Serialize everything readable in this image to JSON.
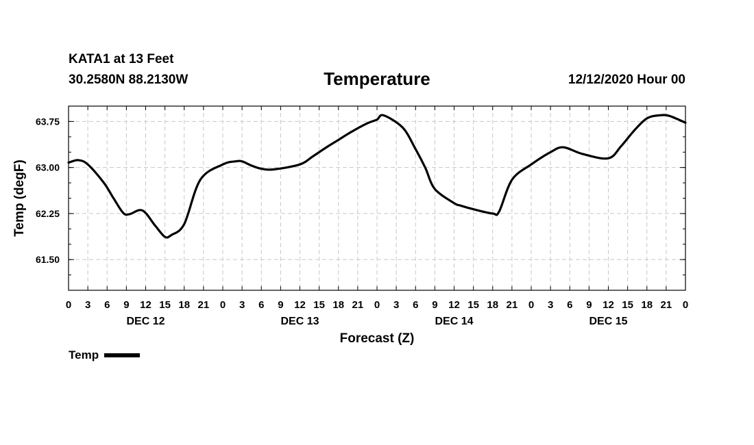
{
  "header": {
    "station": "KATA1 at 13 Feet",
    "coords": "30.2580N 88.2130W",
    "title": "Temperature",
    "datetime": "12/12/2020 Hour 00"
  },
  "chart_data": {
    "type": "line",
    "title": "Temperature",
    "xlabel": "Forecast (Z)",
    "ylabel": "Temp (degF)",
    "x_unit": "forecast hour",
    "xlim": [
      0,
      96
    ],
    "ylim": [
      61.0,
      64.0
    ],
    "y_ticks": [
      61.5,
      62.25,
      63.0,
      63.75
    ],
    "y_tick_labels": [
      "61.50",
      "62.25",
      "63.00",
      "63.75"
    ],
    "grid": true,
    "x_tick_hours": [
      0,
      3,
      6,
      9,
      12,
      15,
      18,
      21,
      24,
      27,
      30,
      33,
      36,
      39,
      42,
      45,
      48,
      51,
      54,
      57,
      60,
      63,
      66,
      69,
      72,
      75,
      78,
      81,
      84,
      87,
      90,
      93,
      96
    ],
    "x_tick_labels": [
      "0",
      "3",
      "6",
      "9",
      "12",
      "15",
      "18",
      "21",
      "0",
      "3",
      "6",
      "9",
      "12",
      "15",
      "18",
      "21",
      "0",
      "3",
      "6",
      "9",
      "12",
      "15",
      "18",
      "21",
      "0",
      "3",
      "6",
      "9",
      "12",
      "15",
      "18",
      "21",
      "0"
    ],
    "day_labels": [
      {
        "label": "DEC 12",
        "hour": 12
      },
      {
        "label": "DEC 13",
        "hour": 36
      },
      {
        "label": "DEC 14",
        "hour": 60
      },
      {
        "label": "DEC 15",
        "hour": 84
      }
    ],
    "legend": {
      "entries": [
        "Temp"
      ],
      "position": "bottom-left"
    },
    "series": [
      {
        "name": "Temp",
        "color": "#000000",
        "x": [
          0,
          1.5,
          3,
          5.5,
          7,
          8.5,
          9.5,
          11.5,
          13.5,
          15,
          16,
          18,
          20.5,
          24,
          26,
          27,
          28.5,
          30,
          32,
          36,
          38,
          40,
          42,
          44,
          46.5,
          48,
          49,
          52,
          54,
          55.5,
          57,
          60,
          61,
          63,
          66,
          67,
          69,
          72,
          75,
          77,
          80,
          84,
          86,
          88,
          90,
          92,
          93.5,
          96
        ],
        "values": [
          63.08,
          63.12,
          63.05,
          62.75,
          62.5,
          62.26,
          62.24,
          62.3,
          62.05,
          61.87,
          61.9,
          62.08,
          62.8,
          63.05,
          63.1,
          63.1,
          63.03,
          62.98,
          62.97,
          63.05,
          63.18,
          63.32,
          63.45,
          63.58,
          63.72,
          63.78,
          63.85,
          63.65,
          63.3,
          63.0,
          62.65,
          62.42,
          62.38,
          62.32,
          62.25,
          62.28,
          62.8,
          63.05,
          63.25,
          63.33,
          63.22,
          63.15,
          63.35,
          63.6,
          63.8,
          63.85,
          63.84,
          63.73
        ]
      }
    ]
  }
}
